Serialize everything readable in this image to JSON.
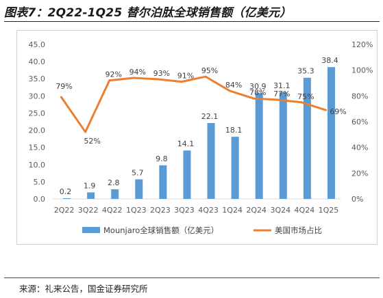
{
  "header": {
    "title": "图表7：2Q22-1Q25 替尔泊肽全球销售额（亿美元）"
  },
  "footer": {
    "source": "来源：礼来公告，国金证券研究所"
  },
  "colors": {
    "bar": "#5b9bd5",
    "line": "#ed7d31"
  },
  "chart_data": {
    "type": "bar",
    "categories": [
      "2Q22",
      "3Q22",
      "4Q22",
      "1Q23",
      "2Q23",
      "3Q23",
      "4Q23",
      "1Q24",
      "2Q24",
      "3Q24",
      "4Q24",
      "1Q25"
    ],
    "series": [
      {
        "name": "Mounjaro全球销售额（亿美元）",
        "type": "bar",
        "axis": "left",
        "values": [
          0.2,
          1.9,
          2.8,
          5.7,
          9.8,
          14.1,
          22.1,
          18.1,
          30.9,
          31.1,
          35.3,
          38.4
        ],
        "labels": [
          "0.2",
          "1.9",
          "2.8",
          "5.7",
          "9.8",
          "14.1",
          "22.1",
          "18.1",
          "30.9",
          "31.1",
          "35.3",
          "38.4"
        ]
      },
      {
        "name": "美国市场占比",
        "type": "line",
        "axis": "right",
        "values": [
          79,
          52,
          92,
          94,
          93,
          91,
          95,
          84,
          78,
          77,
          75,
          69
        ],
        "labels": [
          "79%",
          "52%",
          "92%",
          "94%",
          "93%",
          "91%",
          "95%",
          "84%",
          "78%",
          "77%",
          "75%",
          "69%"
        ]
      }
    ],
    "y_left": {
      "min": 0,
      "max": 45,
      "ticks": [
        "0.0",
        "5.0",
        "10.0",
        "15.0",
        "20.0",
        "25.0",
        "30.0",
        "35.0",
        "40.0",
        "45.0"
      ]
    },
    "y_right": {
      "min": 0,
      "max": 120,
      "ticks": [
        "0%",
        "20%",
        "40%",
        "60%",
        "80%",
        "100%",
        "120%"
      ]
    },
    "grid": false,
    "legend_position": "bottom"
  }
}
